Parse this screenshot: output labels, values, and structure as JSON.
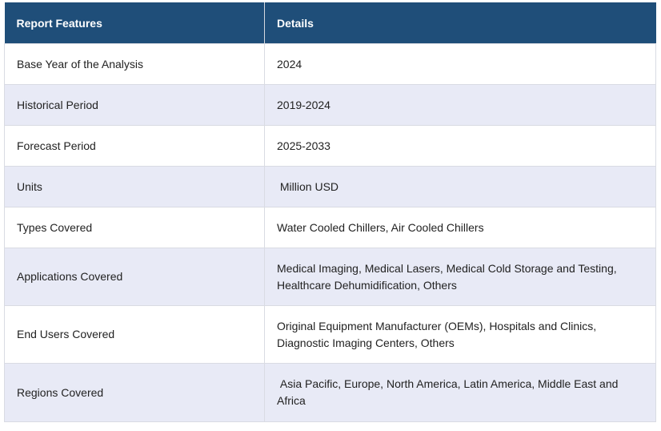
{
  "table": {
    "headers": [
      "Report Features",
      "Details"
    ],
    "rows": [
      {
        "feature": "Base Year of the Analysis",
        "details": "2024"
      },
      {
        "feature": "Historical Period",
        "details": "2019-2024"
      },
      {
        "feature": "Forecast Period",
        "details": "2025-2033"
      },
      {
        "feature": "Units",
        "details": " Million USD"
      },
      {
        "feature": "Types Covered",
        "details": "Water Cooled Chillers, Air Cooled Chillers"
      },
      {
        "feature": "Applications Covered",
        "details": "Medical Imaging, Medical Lasers, Medical Cold Storage and Testing, Healthcare Dehumidification, Others"
      },
      {
        "feature": "End Users Covered",
        "details": "Original Equipment Manufacturer (OEMs), Hospitals and Clinics, Diagnostic Imaging Centers, Others"
      },
      {
        "feature": "Regions Covered",
        "details": " Asia Pacific, Europe, North America, Latin America, Middle East and Africa"
      }
    ]
  },
  "colors": {
    "header_bg": "#1f4e79",
    "header_text": "#ffffff",
    "row_alt_bg": "#e8eaf6",
    "row_bg": "#ffffff"
  }
}
